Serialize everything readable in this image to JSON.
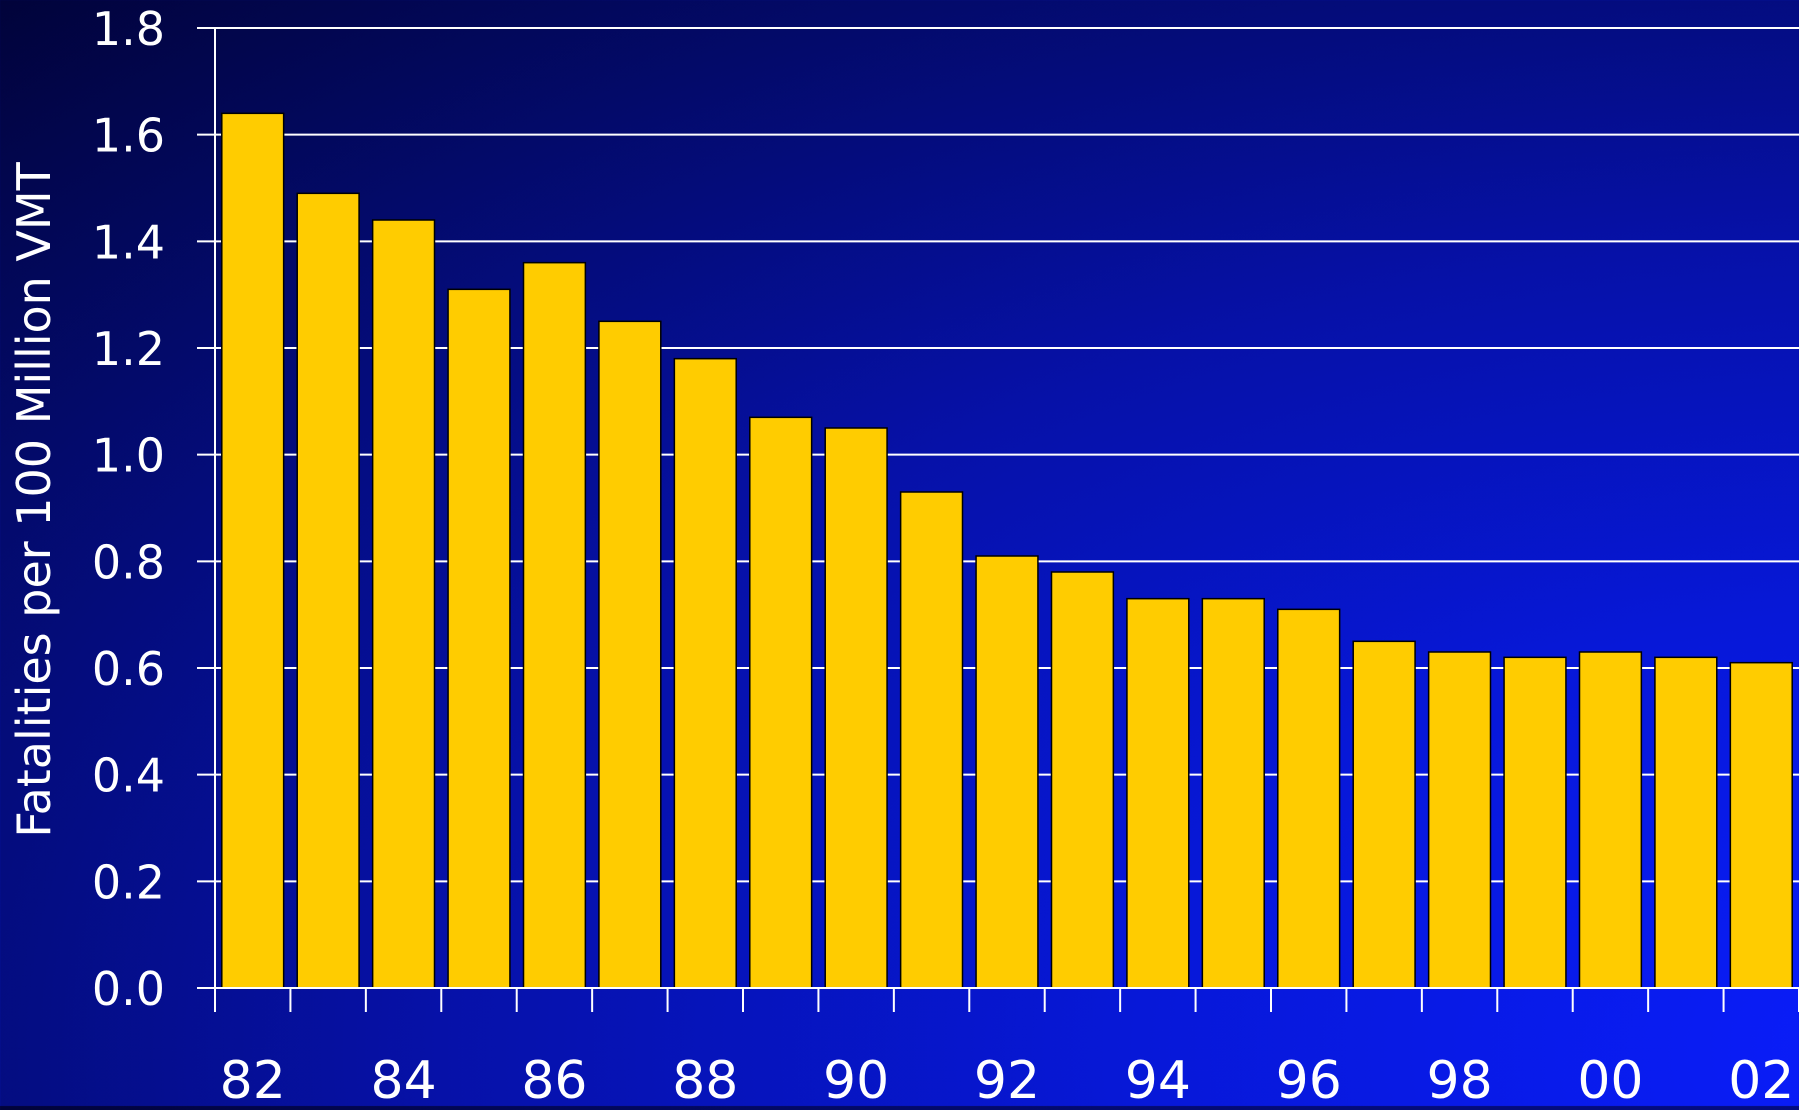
{
  "chart_data": {
    "type": "bar",
    "title": "",
    "xlabel": "",
    "ylabel": "Fatalities per 100 Million VMT",
    "ylim": [
      0,
      1.8
    ],
    "yticks": [
      "0.0",
      "0.2",
      "0.4",
      "0.6",
      "0.8",
      "1.0",
      "1.2",
      "1.4",
      "1.6",
      "1.8"
    ],
    "categories": [
      "82",
      "83",
      "84",
      "85",
      "86",
      "87",
      "88",
      "89",
      "90",
      "91",
      "92",
      "93",
      "94",
      "95",
      "96",
      "97",
      "98",
      "99",
      "00",
      "01",
      "02"
    ],
    "xtick_labels": [
      "82",
      "",
      "84",
      "",
      "86",
      "",
      "88",
      "",
      "90",
      "",
      "92",
      "",
      "94",
      "",
      "96",
      "",
      "98",
      "",
      "00",
      "",
      "02"
    ],
    "values": [
      1.64,
      1.49,
      1.44,
      1.31,
      1.36,
      1.25,
      1.18,
      1.07,
      1.05,
      0.93,
      0.81,
      0.78,
      0.73,
      0.73,
      0.71,
      0.65,
      0.63,
      0.62,
      0.63,
      0.62,
      0.61
    ],
    "grid": true,
    "colors": {
      "bar_fill": "#ffcc00",
      "bar_stroke": "#000000",
      "grid": "#ffffff",
      "axis": "#ffffff",
      "text": "#ffffff"
    }
  }
}
